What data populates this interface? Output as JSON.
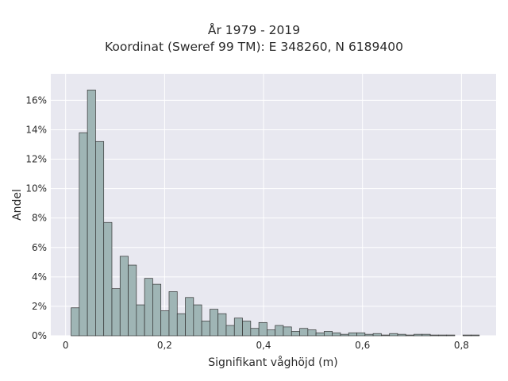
{
  "chart_data": {
    "type": "bar",
    "title_lines": [
      "År 1979 - 2019",
      "Koordinat (Sweref 99 TM): E 348260, N 6189400"
    ],
    "xlabel": "Signifikant våghöjd (m)",
    "ylabel": "Andel",
    "xlim": [
      -0.03,
      0.87
    ],
    "ylim": [
      0,
      0.178
    ],
    "x_ticks": [
      0,
      0.2,
      0.4,
      0.6,
      0.8
    ],
    "x_tick_labels": [
      "0",
      "0,2",
      "0,4",
      "0,6",
      "0,8"
    ],
    "y_ticks": [
      0,
      0.02,
      0.04,
      0.06,
      0.08,
      0.1,
      0.12,
      0.14,
      0.16
    ],
    "y_tick_labels": [
      "0%",
      "2%",
      "4%",
      "6%",
      "8%",
      "10%",
      "12%",
      "14%",
      "16%"
    ],
    "grid": true,
    "bin_width": 0.0165,
    "bin_start": 0.011,
    "bar_color": "#9fb5b5",
    "bar_edge_color": "#333333",
    "plot_background": "#e8e8f0",
    "values": [
      0.019,
      0.138,
      0.167,
      0.132,
      0.077,
      0.032,
      0.054,
      0.048,
      0.021,
      0.039,
      0.035,
      0.017,
      0.03,
      0.015,
      0.026,
      0.021,
      0.01,
      0.018,
      0.015,
      0.007,
      0.012,
      0.01,
      0.005,
      0.009,
      0.004,
      0.007,
      0.006,
      0.003,
      0.005,
      0.004,
      0.002,
      0.003,
      0.002,
      0.001,
      0.002,
      0.002,
      0.001,
      0.0015,
      0.0005,
      0.0015,
      0.001,
      0.0005,
      0.001,
      0.001,
      0.0005,
      0.0005,
      0.0005,
      0.0,
      0.0005,
      0.0005
    ]
  }
}
